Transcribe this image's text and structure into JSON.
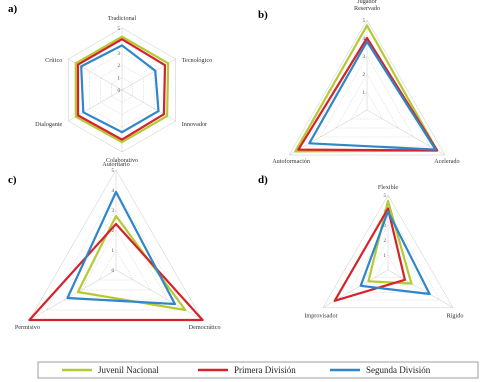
{
  "colors": {
    "Juvenil Nacional": "#b5c932",
    "Primera División": "#d4232b",
    "Segunda División": "#2f86c8"
  },
  "legend": [
    {
      "name": "Juvenil Nacional",
      "color": "#b5c932"
    },
    {
      "name": "Primera División",
      "color": "#d4232b"
    },
    {
      "name": "Segunda División",
      "color": "#2f86c8"
    }
  ],
  "chart_data": [
    {
      "id": "a",
      "type": "radar",
      "panel_label": "a)",
      "axes": [
        "Tradicional",
        "Tecnológico",
        "Innovador",
        "Colaborativo",
        "Dialogante",
        "Crítico"
      ],
      "ticks": [
        "0",
        "1",
        "2",
        "3",
        "4",
        "5"
      ],
      "rmax": 5,
      "series": [
        {
          "name": "Juvenil Nacional",
          "values": [
            4.3,
            4.3,
            4.2,
            4.2,
            4.3,
            4.3
          ]
        },
        {
          "name": "Primera División",
          "values": [
            4.1,
            4.0,
            3.9,
            4.0,
            4.1,
            4.1
          ]
        },
        {
          "name": "Segunda División",
          "values": [
            3.6,
            3.1,
            3.4,
            3.4,
            3.6,
            3.8
          ]
        }
      ]
    },
    {
      "id": "b",
      "type": "radar",
      "panel_label": "b)",
      "axes": [
        "Jugador Reservado",
        "Acelerado",
        "Autoformación"
      ],
      "ticks": [
        "1",
        "2",
        "3",
        "4",
        "5"
      ],
      "rmax": 5,
      "series": [
        {
          "name": "Juvenil Nacional",
          "values": [
            4.7,
            4.5,
            4.6
          ]
        },
        {
          "name": "Primera División",
          "values": [
            4.0,
            4.5,
            4.4
          ]
        },
        {
          "name": "Segunda División",
          "values": [
            3.8,
            4.4,
            3.7
          ]
        }
      ]
    },
    {
      "id": "c",
      "type": "radar",
      "panel_label": "c)",
      "axes": [
        "Autoritario",
        "Democrático",
        "Permisivo"
      ],
      "ticks": [
        "0",
        "1",
        "2",
        "3",
        "4",
        "5"
      ],
      "rmax": 5,
      "series": [
        {
          "name": "Juvenil Nacional",
          "values": [
            2.7,
            4.0,
            2.2
          ]
        },
        {
          "name": "Primera División",
          "values": [
            2.3,
            5.0,
            5.0
          ]
        },
        {
          "name": "Segunda División",
          "values": [
            3.9,
            3.4,
            2.8
          ]
        }
      ]
    },
    {
      "id": "d",
      "type": "radar",
      "panel_label": "d)",
      "axes": [
        "Flexible",
        "Rígido",
        "Improvisador"
      ],
      "ticks": [
        "1",
        "2",
        "3",
        "4",
        "5"
      ],
      "rmax": 5,
      "series": [
        {
          "name": "Juvenil Nacional",
          "values": [
            4.6,
            1.8,
            1.5
          ]
        },
        {
          "name": "Primera División",
          "values": [
            4.1,
            1.3,
            4.1
          ]
        },
        {
          "name": "Segunda División",
          "values": [
            3.9,
            3.2,
            2.1
          ]
        }
      ]
    }
  ]
}
